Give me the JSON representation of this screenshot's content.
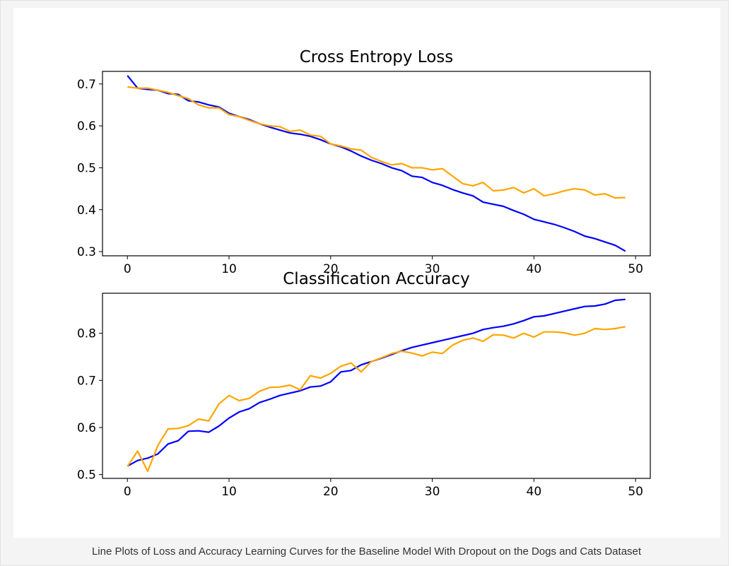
{
  "caption": "Line Plots of Loss and Accuracy Learning Curves for the Baseline Model With Dropout on the Dogs and Cats Dataset",
  "colors": {
    "train": "#0000ff",
    "test": "#ffa500",
    "axes": "#000000"
  },
  "chart_data": [
    {
      "type": "line",
      "title": "Cross Entropy Loss",
      "xlabel": "",
      "ylabel": "",
      "xlim": [
        -2.45,
        51.45
      ],
      "ylim": [
        0.29,
        0.73
      ],
      "xticks": [
        0,
        10,
        20,
        30,
        40,
        50
      ],
      "yticks": [
        0.3,
        0.4,
        0.5,
        0.6,
        0.7
      ],
      "grid": false,
      "x": [
        0,
        1,
        2,
        3,
        4,
        5,
        6,
        7,
        8,
        9,
        10,
        11,
        12,
        13,
        14,
        15,
        16,
        17,
        18,
        19,
        20,
        21,
        22,
        23,
        24,
        25,
        26,
        27,
        28,
        29,
        30,
        31,
        32,
        33,
        34,
        35,
        36,
        37,
        38,
        39,
        40,
        41,
        42,
        43,
        44,
        45,
        46,
        47,
        48,
        49
      ],
      "series": [
        {
          "color": "#0000ff",
          "values": [
            0.72,
            0.69,
            0.687,
            0.685,
            0.677,
            0.675,
            0.66,
            0.657,
            0.65,
            0.645,
            0.63,
            0.622,
            0.615,
            0.605,
            0.597,
            0.59,
            0.583,
            0.58,
            0.575,
            0.567,
            0.557,
            0.55,
            0.54,
            0.528,
            0.518,
            0.51,
            0.5,
            0.493,
            0.48,
            0.477,
            0.465,
            0.458,
            0.448,
            0.44,
            0.433,
            0.418,
            0.413,
            0.408,
            0.398,
            0.389,
            0.377,
            0.371,
            0.365,
            0.357,
            0.348,
            0.337,
            0.331,
            0.323,
            0.315,
            0.301
          ]
        },
        {
          "color": "#ffa500",
          "values": [
            0.693,
            0.69,
            0.69,
            0.685,
            0.68,
            0.672,
            0.665,
            0.65,
            0.643,
            0.643,
            0.627,
            0.622,
            0.613,
            0.605,
            0.6,
            0.598,
            0.587,
            0.59,
            0.578,
            0.575,
            0.557,
            0.552,
            0.545,
            0.542,
            0.525,
            0.515,
            0.507,
            0.51,
            0.5,
            0.5,
            0.495,
            0.498,
            0.48,
            0.462,
            0.457,
            0.465,
            0.445,
            0.447,
            0.453,
            0.44,
            0.45,
            0.433,
            0.438,
            0.445,
            0.45,
            0.447,
            0.435,
            0.438,
            0.428,
            0.429
          ]
        }
      ]
    },
    {
      "type": "line",
      "title": "Classification Accuracy",
      "xlabel": "",
      "ylabel": "",
      "xlim": [
        -2.45,
        51.45
      ],
      "ylim": [
        0.492,
        0.885
      ],
      "xticks": [
        0,
        10,
        20,
        30,
        40,
        50
      ],
      "yticks": [
        0.5,
        0.6,
        0.7,
        0.8
      ],
      "grid": false,
      "x": [
        0,
        1,
        2,
        3,
        4,
        5,
        6,
        7,
        8,
        9,
        10,
        11,
        12,
        13,
        14,
        15,
        16,
        17,
        18,
        19,
        20,
        21,
        22,
        23,
        24,
        25,
        26,
        27,
        28,
        29,
        30,
        31,
        32,
        33,
        34,
        35,
        36,
        37,
        38,
        39,
        40,
        41,
        42,
        43,
        44,
        45,
        46,
        47,
        48,
        49
      ],
      "series": [
        {
          "color": "#0000ff",
          "values": [
            0.518,
            0.53,
            0.535,
            0.544,
            0.565,
            0.572,
            0.592,
            0.593,
            0.59,
            0.603,
            0.62,
            0.633,
            0.64,
            0.653,
            0.66,
            0.668,
            0.673,
            0.678,
            0.686,
            0.688,
            0.697,
            0.718,
            0.721,
            0.733,
            0.74,
            0.747,
            0.755,
            0.763,
            0.77,
            0.775,
            0.78,
            0.785,
            0.79,
            0.795,
            0.8,
            0.808,
            0.812,
            0.815,
            0.82,
            0.827,
            0.835,
            0.837,
            0.842,
            0.847,
            0.852,
            0.857,
            0.858,
            0.862,
            0.87,
            0.872
          ]
        },
        {
          "color": "#ffa500",
          "values": [
            0.517,
            0.55,
            0.507,
            0.562,
            0.597,
            0.598,
            0.604,
            0.618,
            0.614,
            0.65,
            0.668,
            0.657,
            0.662,
            0.677,
            0.685,
            0.686,
            0.69,
            0.68,
            0.71,
            0.705,
            0.715,
            0.73,
            0.737,
            0.718,
            0.74,
            0.748,
            0.757,
            0.762,
            0.758,
            0.752,
            0.76,
            0.757,
            0.775,
            0.785,
            0.79,
            0.783,
            0.797,
            0.796,
            0.79,
            0.8,
            0.792,
            0.803,
            0.803,
            0.801,
            0.796,
            0.8,
            0.81,
            0.808,
            0.81,
            0.814
          ]
        }
      ]
    }
  ]
}
